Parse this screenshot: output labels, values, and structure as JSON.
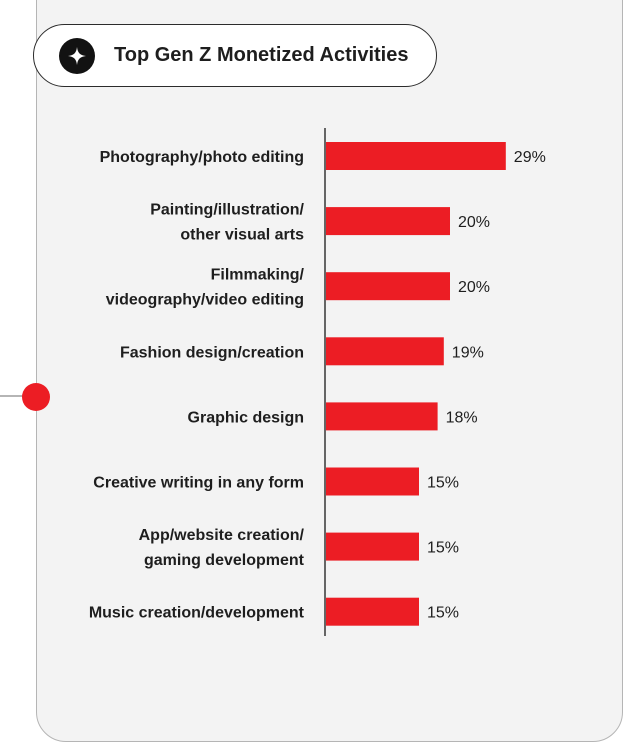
{
  "header": {
    "title": "Top Gen Z Monetized Activities",
    "icon": "sparkle-icon"
  },
  "colors": {
    "bar": "#ec1d24",
    "accent_dot": "#ec1d24",
    "panel_background": "#f3f3f3",
    "text": "#1e1e1e"
  },
  "chart_data": {
    "type": "bar",
    "orientation": "horizontal",
    "title": "Top Gen Z Monetized Activities",
    "categories": [
      [
        "Photography/photo editing"
      ],
      [
        "Painting/illustration/",
        "other visual arts"
      ],
      [
        "Filmmaking/",
        "videography/video editing"
      ],
      [
        "Fashion design/creation"
      ],
      [
        "Graphic design"
      ],
      [
        "Creative writing in any form"
      ],
      [
        "App/website creation/",
        "gaming development"
      ],
      [
        "Music creation/development"
      ]
    ],
    "values": [
      29,
      20,
      20,
      19,
      18,
      15,
      15,
      15
    ],
    "value_labels": [
      "29%",
      "20%",
      "20%",
      "19%",
      "18%",
      "15%",
      "15%",
      "15%"
    ],
    "unit": "%",
    "grid": false,
    "legend": "none"
  }
}
